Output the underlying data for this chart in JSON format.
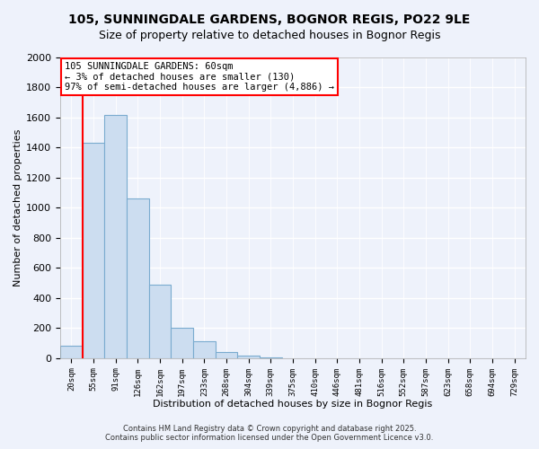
{
  "title": "105, SUNNINGDALE GARDENS, BOGNOR REGIS, PO22 9LE",
  "subtitle": "Size of property relative to detached houses in Bognor Regis",
  "xlabel": "Distribution of detached houses by size in Bognor Regis",
  "ylabel": "Number of detached properties",
  "bar_labels": [
    "20sqm",
    "55sqm",
    "91sqm",
    "126sqm",
    "162sqm",
    "197sqm",
    "233sqm",
    "268sqm",
    "304sqm",
    "339sqm",
    "375sqm",
    "410sqm",
    "446sqm",
    "481sqm",
    "516sqm",
    "552sqm",
    "587sqm",
    "623sqm",
    "658sqm",
    "694sqm",
    "729sqm"
  ],
  "bar_values": [
    80,
    1430,
    1620,
    1060,
    490,
    205,
    110,
    40,
    15,
    5,
    0,
    0,
    0,
    0,
    0,
    0,
    0,
    0,
    0,
    0,
    0
  ],
  "bar_color": "#ccddf0",
  "bar_edge_color": "#7aabcf",
  "vline_color": "red",
  "vline_bar_index": 1,
  "annotation_title": "105 SUNNINGDALE GARDENS: 60sqm",
  "annotation_line1": "← 3% of detached houses are smaller (130)",
  "annotation_line2": "97% of semi-detached houses are larger (4,886) →",
  "annotation_box_color": "white",
  "annotation_box_edge": "red",
  "ylim": [
    0,
    2000
  ],
  "yticks": [
    0,
    200,
    400,
    600,
    800,
    1000,
    1200,
    1400,
    1600,
    1800,
    2000
  ],
  "footnote1": "Contains HM Land Registry data © Crown copyright and database right 2025.",
  "footnote2": "Contains public sector information licensed under the Open Government Licence v3.0.",
  "bg_color": "#eef2fb",
  "grid_color": "#ffffff",
  "title_fontsize": 10,
  "subtitle_fontsize": 9
}
